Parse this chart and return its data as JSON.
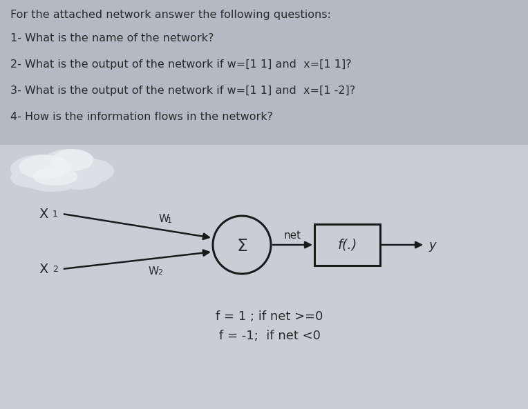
{
  "background_color_top": "#b8bfc8",
  "background_color_bottom": "#c8ccd2",
  "text_color": "#2a2a2a",
  "title": "For the attached network answer the following questions:",
  "questions": [
    "1- What is the name of the network?",
    "2- What is the output of the network if w=[1 1] and  x=[1 1]?",
    "3- What is the output of the network if w=[1 1] and  x=[1 -2]?",
    "4- How is the information flows in the network?"
  ],
  "x1_label": "X",
  "x1_sub": "1",
  "x2_label": "X",
  "x2_sub": "2",
  "w1_label": "W",
  "w1_sub": "1",
  "w2_label": "W",
  "w2_sub": "2",
  "sigma_label": "Σ",
  "net_label": "net",
  "f_label": "f(.)",
  "y_label": "y",
  "activation_line1": "f = 1 ; if net >=0",
  "activation_line2": "f = -1;  if net <0",
  "arrow_color": "#1a1a1a",
  "circle_edge_color": "#1a1a1a",
  "box_edge_color": "#1a1a1a",
  "font_size_title": 11.5,
  "font_size_questions": 11.5,
  "font_size_diagram": 14,
  "font_size_sigma": 18,
  "font_size_activation": 13,
  "font_size_ylabel": 13,
  "cloud_color": "#e8eaec",
  "diagram_panel_color": "#cfd3d8"
}
